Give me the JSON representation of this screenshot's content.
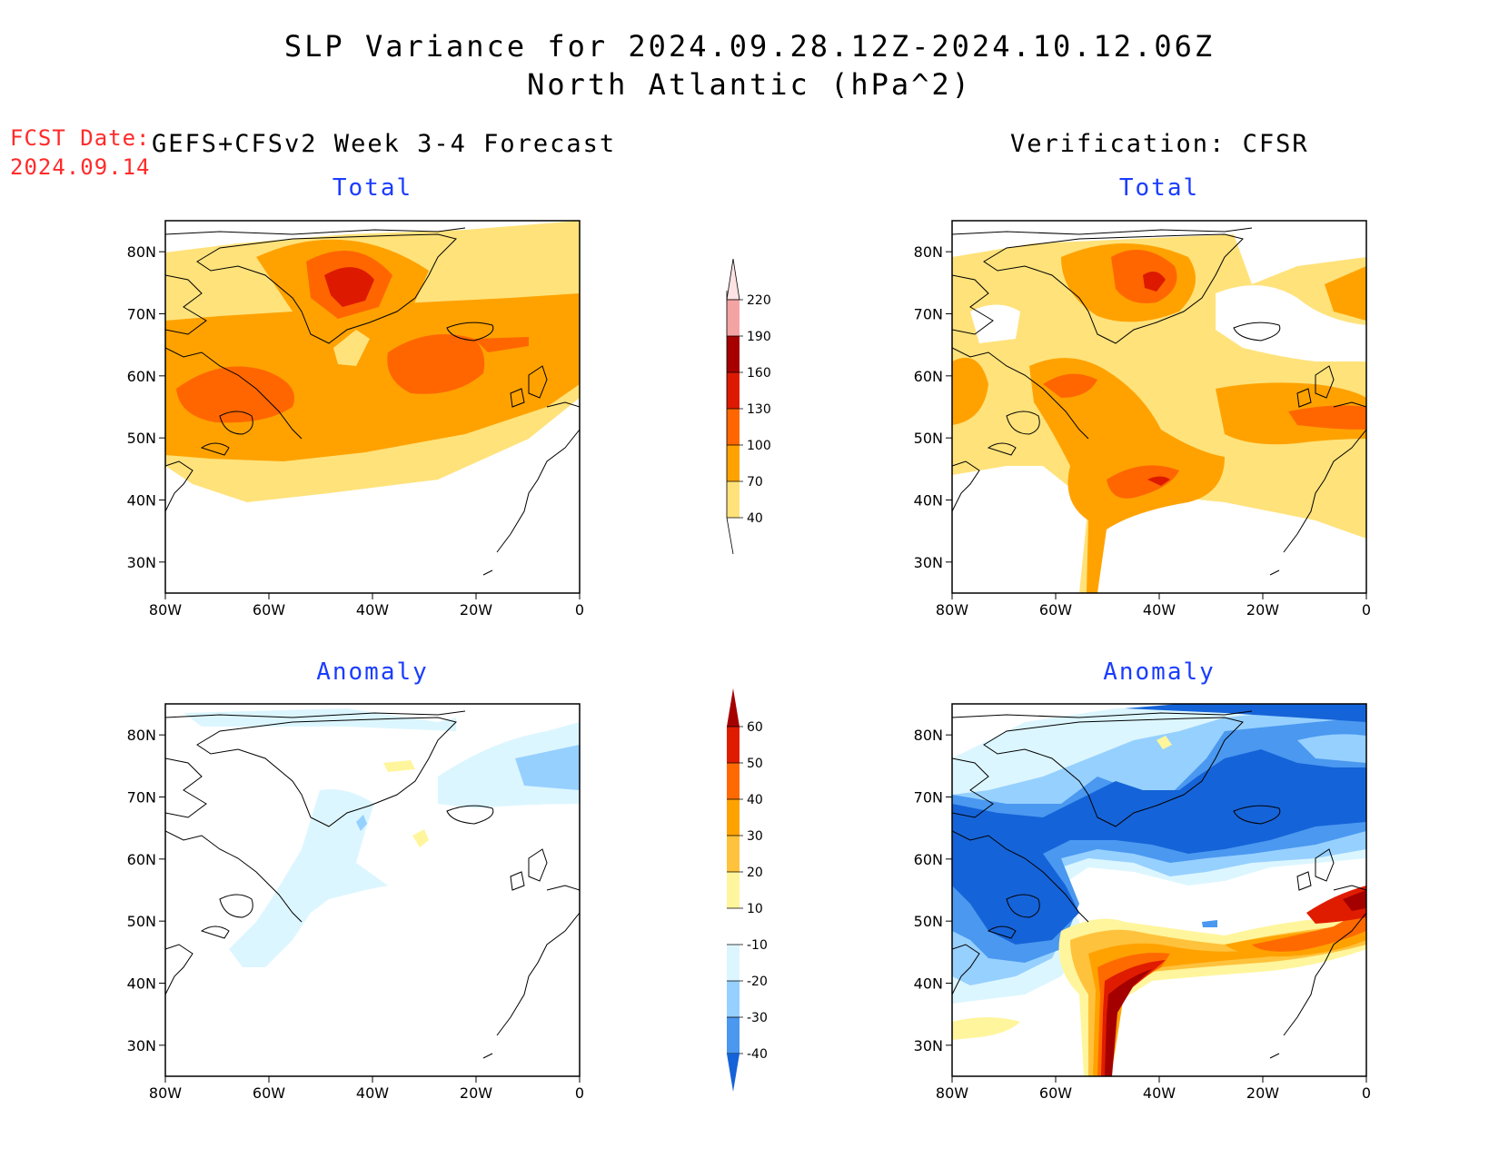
{
  "title": {
    "line1": "SLP Variance for 2024.09.28.12Z-2024.10.12.06Z",
    "line2": "North Atlantic (hPa^2)"
  },
  "fcst": {
    "label": "FCST Date:",
    "date": "2024.09.14"
  },
  "headers": {
    "left": "GEFS+CFSv2 Week 3-4 Forecast",
    "right": "Verification: CFSR"
  },
  "panels": [
    {
      "id": "fcst-total",
      "subtitle": "Total",
      "scale": "total"
    },
    {
      "id": "verif-total",
      "subtitle": "Total",
      "scale": "total"
    },
    {
      "id": "fcst-anomaly",
      "subtitle": "Anomaly",
      "scale": "anomaly"
    },
    {
      "id": "verif-anomaly",
      "subtitle": "Anomaly",
      "scale": "anomaly"
    }
  ],
  "axes": {
    "lat_labels": [
      "80N",
      "70N",
      "60N",
      "50N",
      "40N",
      "30N"
    ],
    "lon_labels": [
      "80W",
      "60W",
      "40W",
      "20W",
      "0"
    ],
    "lat_range": [
      25,
      85
    ],
    "lon_range": [
      -80,
      0
    ]
  },
  "colorbars": {
    "total": {
      "levels": [
        "220",
        "190",
        "160",
        "130",
        "100",
        "70",
        "40"
      ],
      "colors": [
        "#fde3e3",
        "#f4a3a3",
        "#a60000",
        "#dd1a00",
        "#ff6600",
        "#ffa200",
        "#ffe27a"
      ]
    },
    "anomaly": {
      "levels": [
        "60",
        "50",
        "40",
        "30",
        "20",
        "10",
        "-10",
        "-20",
        "-30",
        "-40"
      ],
      "colors": [
        "#a50000",
        "#e01c00",
        "#ff6a00",
        "#ffa200",
        "#ffc23c",
        "#fff59c",
        "#ffffff",
        "#dcf6ff",
        "#96d0ff",
        "#4a98f0",
        "#1563d8"
      ]
    }
  }
}
